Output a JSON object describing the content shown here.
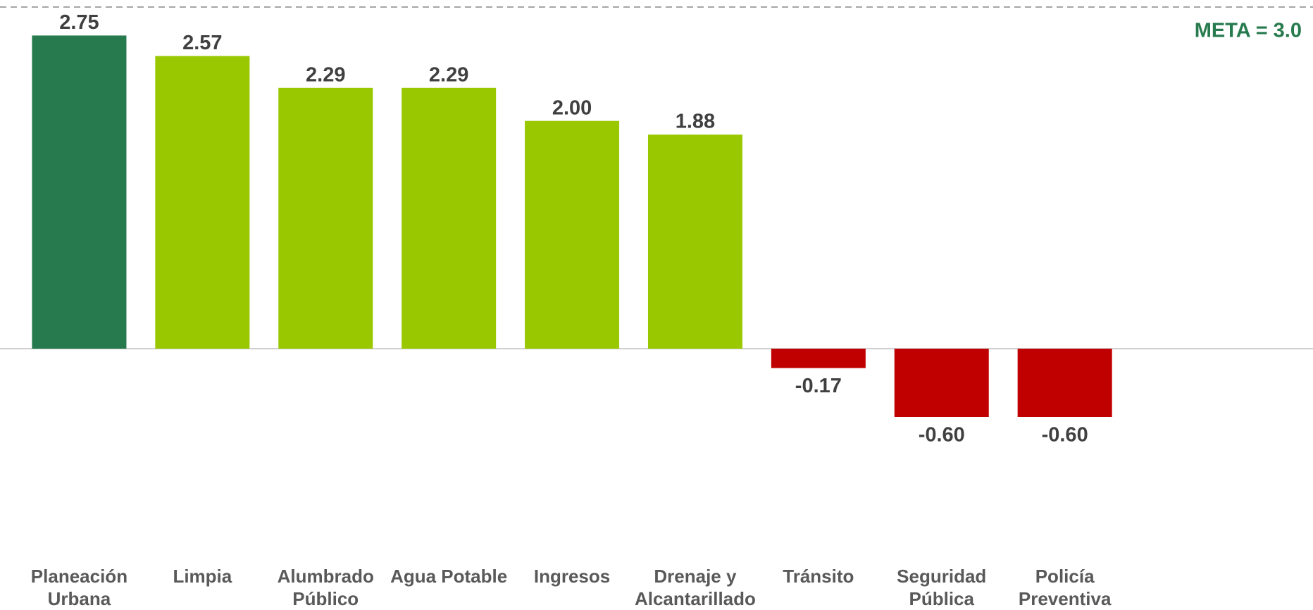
{
  "chart_data": {
    "type": "bar",
    "categories": [
      "Planeación Urbana",
      "Limpia",
      "Alumbrado Público",
      "Agua Potable",
      "Ingresos",
      "Drenaje y Alcantarillado",
      "Tránsito",
      "Seguridad Pública",
      "Policía Preventiva"
    ],
    "values": [
      2.75,
      2.57,
      2.29,
      2.29,
      2.0,
      1.88,
      -0.17,
      -0.6,
      -0.6
    ],
    "value_labels": [
      "2.75",
      "2.57",
      "2.29",
      "2.29",
      "2.00",
      "1.88",
      "-0.17",
      "-0.60",
      "-0.60"
    ],
    "colors": [
      "#267a4e",
      "#99c800",
      "#99c800",
      "#99c800",
      "#99c800",
      "#99c800",
      "#c00000",
      "#c00000",
      "#c00000"
    ],
    "ylim": [
      -1.2,
      3.0
    ],
    "meta": 3.0,
    "annotation": "META = 3.0"
  }
}
